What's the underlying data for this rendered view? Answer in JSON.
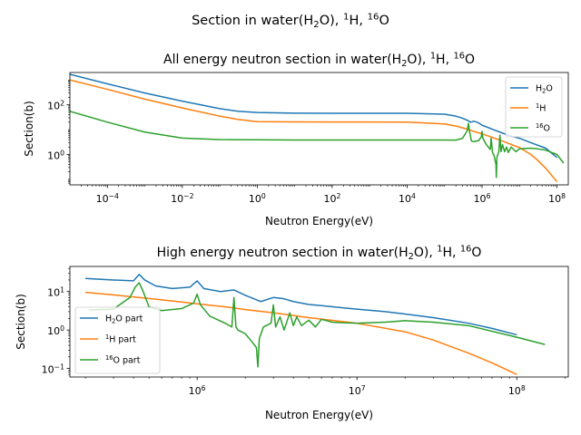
{
  "figure": {
    "suptitle": [
      "Section in water(H",
      "2",
      "O), ",
      "1",
      "H, ",
      "16",
      "O"
    ]
  },
  "chart_data": [
    {
      "type": "line",
      "title": [
        "All energy neutron section in water(H",
        "2",
        "O), ",
        "1",
        "H, ",
        "16",
        "O"
      ],
      "xlabel": "Neutron Energy(eV)",
      "ylabel": "Section(b)",
      "xscale": "log",
      "yscale": "log",
      "xlim": [
        1e-05,
        200000000.0
      ],
      "ylim": [
        0.06,
        2000
      ],
      "xticks": [
        {
          "v": 0.0001,
          "base": "10",
          "exp": "−4"
        },
        {
          "v": 0.01,
          "base": "10",
          "exp": "−2"
        },
        {
          "v": 1,
          "base": "10",
          "exp": "0"
        },
        {
          "v": 100,
          "base": "10",
          "exp": "2"
        },
        {
          "v": 10000.0,
          "base": "10",
          "exp": "4"
        },
        {
          "v": 1000000.0,
          "base": "10",
          "exp": "6"
        },
        {
          "v": 100000000.0,
          "base": "10",
          "exp": "8"
        }
      ],
      "yticks": [
        {
          "v": 1,
          "base": "10",
          "exp": "0"
        },
        {
          "v": 100,
          "base": "10",
          "exp": "2"
        }
      ],
      "legend": {
        "position": "upper right",
        "entries": [
          {
            "series": 0,
            "parts": [
              "H",
              "2",
              "O"
            ],
            "kinds": [
              "n",
              "sub",
              "n"
            ]
          },
          {
            "series": 1,
            "parts": [
              "1",
              "H"
            ],
            "kinds": [
              "sup",
              "n"
            ]
          },
          {
            "series": 2,
            "parts": [
              "16",
              "O"
            ],
            "kinds": [
              "sup",
              "n"
            ]
          }
        ]
      },
      "series": [
        {
          "color": "#1f77b4",
          "x": [
            1e-05,
            0.0001,
            0.001,
            0.01,
            0.1,
            0.3,
            1,
            10,
            100,
            1000,
            10000.0,
            100000.0,
            200000.0,
            300000.0,
            400000.0,
            500000.0,
            600000.0,
            800000.0,
            1000000.0,
            1500000.0,
            2000000.0,
            3000000.0,
            5000000.0,
            10000000.0,
            20000000.0,
            50000000.0,
            100000000.0
          ],
          "y": [
            1700,
            700,
            300,
            140,
            70,
            55,
            49,
            46,
            45.5,
            45.5,
            45.5,
            42,
            35,
            29,
            24,
            20,
            22,
            19,
            15,
            12,
            10,
            8,
            6,
            4.5,
            3,
            1.8,
            0.75
          ]
        },
        {
          "color": "#ff7f0e",
          "x": [
            1e-05,
            0.0001,
            0.001,
            0.01,
            0.1,
            0.3,
            1,
            10,
            100,
            1000,
            10000.0,
            100000.0,
            200000.0,
            400000.0,
            600000.0,
            1000000.0,
            2000000.0,
            3000000.0,
            5000000.0,
            10000000.0,
            20000000.0,
            30000000.0,
            50000000.0,
            100000000.0
          ],
          "y": [
            1000,
            420,
            170,
            75,
            35,
            26,
            21,
            20.5,
            20.4,
            20.4,
            20.2,
            17,
            14,
            10.5,
            8.5,
            6.8,
            4.7,
            3.8,
            2.8,
            1.9,
            1.0,
            0.6,
            0.28,
            0.08
          ]
        },
        {
          "color": "#2ca02c",
          "x": [
            1e-05,
            0.0001,
            0.001,
            0.01,
            0.1,
            1,
            10,
            100,
            1000,
            10000.0,
            100000.0,
            200000.0,
            300000.0,
            400000.0,
            434000.0,
            460000.0,
            520000.0,
            600000.0,
            800000.0,
            950000.0,
            1000000.0,
            1050000.0,
            1300000.0,
            1650000.0,
            1750000.0,
            1900000.0,
            2100000.0,
            2350000.0,
            2400000.0,
            2500000.0,
            2800000.0,
            3000000.0,
            3200000.0,
            3500000.0,
            4000000.0,
            4500000.0,
            5000000.0,
            6000000.0,
            8000000.0,
            10000000.0,
            20000000.0,
            30000000.0,
            50000000.0,
            100000000.0,
            150000000.0
          ],
          "y": [
            55,
            20,
            8,
            4.6,
            4.0,
            3.9,
            3.85,
            3.85,
            3.85,
            3.85,
            3.85,
            3.8,
            4.5,
            9,
            18,
            9,
            3.5,
            3.3,
            3.6,
            5,
            8.5,
            4.5,
            2.5,
            1.6,
            4.5,
            1.2,
            0.9,
            0.4,
            0.12,
            0.8,
            1.3,
            6,
            1.3,
            2.5,
            1.3,
            2.0,
            1.2,
            2.0,
            1.3,
            1.7,
            1.8,
            1.7,
            1.5,
            1.0,
            0.45
          ]
        }
      ]
    },
    {
      "type": "line",
      "title": [
        "High energy neutron section in water(H",
        "2",
        "O), ",
        "1",
        "H, ",
        "16",
        "O"
      ],
      "xlabel": "Neutron Energy(eV)",
      "ylabel": "Section(b)",
      "xscale": "log",
      "yscale": "log",
      "xlim": [
        160000.0,
        210000000.0
      ],
      "ylim": [
        0.06,
        45
      ],
      "xticks": [
        {
          "v": 1000000.0,
          "base": "10",
          "exp": "6"
        },
        {
          "v": 10000000.0,
          "base": "10",
          "exp": "7"
        },
        {
          "v": 100000000.0,
          "base": "10",
          "exp": "8"
        }
      ],
      "yticks": [
        {
          "v": 0.1,
          "base": "10",
          "exp": "−1"
        },
        {
          "v": 1,
          "base": "10",
          "exp": "0"
        },
        {
          "v": 10,
          "base": "10",
          "exp": "1"
        }
      ],
      "legend": {
        "position": "lower left",
        "entries": [
          {
            "series": 0,
            "parts": [
              "H",
              "2",
              "O part"
            ],
            "kinds": [
              "n",
              "sub",
              "n"
            ]
          },
          {
            "series": 1,
            "parts": [
              "1",
              "H part"
            ],
            "kinds": [
              "sup",
              "n"
            ]
          },
          {
            "series": 2,
            "parts": [
              "16",
              "O part"
            ],
            "kinds": [
              "sup",
              "n"
            ]
          }
        ]
      },
      "series": [
        {
          "color": "#1f77b4",
          "x": [
            200000.0,
            300000.0,
            400000.0,
            434000.0,
            470000.0,
            550000.0,
            700000.0,
            900000.0,
            1000000.0,
            1100000.0,
            1400000.0,
            1700000.0,
            2000000.0,
            2500000.0,
            3000000.0,
            3500000.0,
            4000000.0,
            5000000.0,
            6000000.0,
            8000000.0,
            10000000.0,
            15000000.0,
            20000000.0,
            30000000.0,
            50000000.0,
            70000000.0,
            100000000.0
          ],
          "y": [
            22,
            20,
            19,
            28,
            20,
            14,
            12,
            13,
            19,
            12,
            10,
            11,
            8,
            5.5,
            7,
            6.5,
            5.5,
            4.6,
            4.3,
            3.8,
            3.5,
            3.0,
            2.6,
            2.1,
            1.5,
            1.1,
            0.75
          ]
        },
        {
          "color": "#ff7f0e",
          "x": [
            200000.0,
            300000.0,
            500000.0,
            700000.0,
            1000000.0,
            1500000.0,
            2000000.0,
            3000000.0,
            5000000.0,
            10000000.0,
            20000000.0,
            30000000.0,
            50000000.0,
            70000000.0,
            100000000.0
          ],
          "y": [
            9.5,
            8.2,
            6.6,
            5.7,
            4.8,
            4.0,
            3.4,
            2.8,
            2.1,
            1.5,
            0.9,
            0.55,
            0.25,
            0.14,
            0.07
          ]
        },
        {
          "color": "#2ca02c",
          "x": [
            210000.0,
            300000.0,
            380000.0,
            410000.0,
            434000.0,
            460000.0,
            500000.0,
            600000.0,
            800000.0,
            950000.0,
            1000000.0,
            1050000.0,
            1200000.0,
            1500000.0,
            1650000.0,
            1700000.0,
            1750000.0,
            1800000.0,
            2000000.0,
            2200000.0,
            2350000.0,
            2400000.0,
            2450000.0,
            2600000.0,
            2900000.0,
            3000000.0,
            3100000.0,
            3300000.0,
            3500000.0,
            3800000.0,
            4000000.0,
            4200000.0,
            4500000.0,
            5000000.0,
            5500000.0,
            6000000.0,
            7000000.0,
            8000000.0,
            10000000.0,
            15000000.0,
            20000000.0,
            30000000.0,
            50000000.0,
            100000000.0,
            150000000.0
          ],
          "y": [
            3.3,
            3.5,
            7,
            13,
            17,
            10,
            4,
            3.2,
            3.6,
            5,
            8.5,
            4.5,
            2.3,
            1.5,
            1.2,
            7,
            1.2,
            1.0,
            0.8,
            0.5,
            0.35,
            0.11,
            0.6,
            1.2,
            1.5,
            4.5,
            1.2,
            2.2,
            1.0,
            2.8,
            1.3,
            2.2,
            1.3,
            1.8,
            1.2,
            1.9,
            1.6,
            1.55,
            1.5,
            1.6,
            1.75,
            1.6,
            1.3,
            0.65,
            0.42
          ]
        }
      ]
    }
  ]
}
